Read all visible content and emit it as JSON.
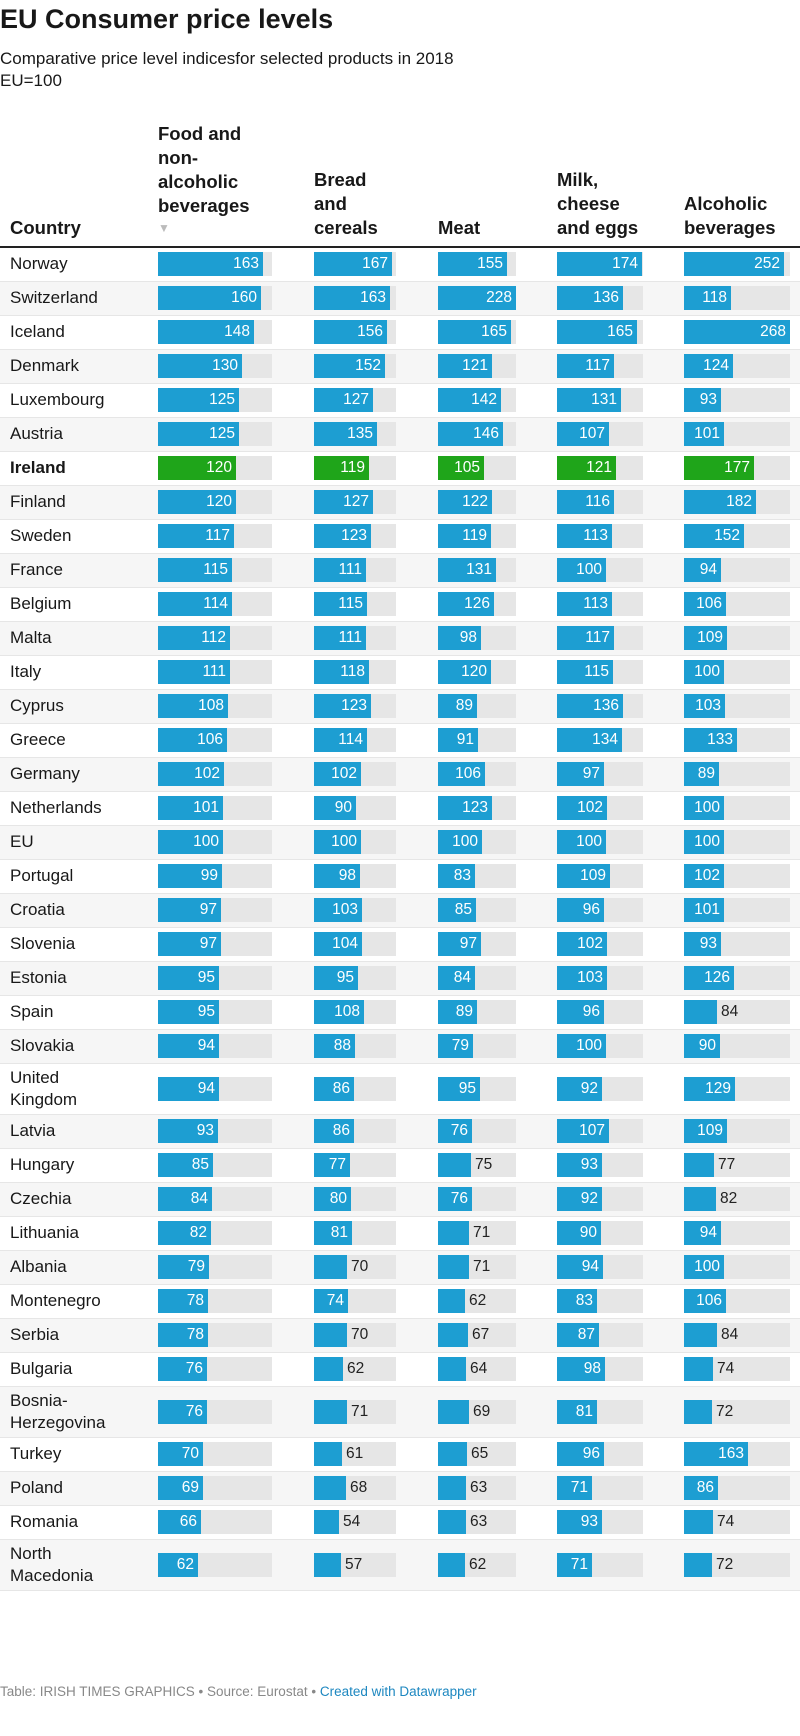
{
  "title": "EU Consumer price levels",
  "subtitle": "Comparative price level indicesfor selected products in 2018",
  "subtitle2": "EU=100",
  "colors": {
    "bar": "#1d9ed2",
    "highlight": "#1fa51a",
    "track": "#e6e6e6"
  },
  "footer": {
    "text": "Table: IRISH TIMES GRAPHICS • Source: Eurostat •",
    "link": "Created with Datawrapper"
  },
  "chart_data": {
    "type": "table",
    "title": "EU Consumer price levels",
    "subtitle": "Comparative price level indicesfor selected products in 2018",
    "scale_max": 268,
    "highlight_row": "Ireland",
    "columns": [
      {
        "key": "country",
        "label": "Country"
      },
      {
        "key": "food",
        "label": "Food and non-alcoholic beverages",
        "sorted": "descending",
        "sort_icon": "sort-down-icon"
      },
      {
        "key": "bread",
        "label": "Bread and cereals"
      },
      {
        "key": "meat",
        "label": "Meat"
      },
      {
        "key": "milk",
        "label": "Milk, cheese and eggs"
      },
      {
        "key": "alcohol",
        "label": "Alcoholic beverages"
      }
    ],
    "rows": [
      {
        "country": "Norway",
        "values": [
          163,
          167,
          155,
          174,
          252
        ]
      },
      {
        "country": "Switzerland",
        "values": [
          160,
          163,
          228,
          136,
          118
        ]
      },
      {
        "country": "Iceland",
        "values": [
          148,
          156,
          165,
          165,
          268
        ]
      },
      {
        "country": "Denmark",
        "values": [
          130,
          152,
          121,
          117,
          124
        ]
      },
      {
        "country": "Luxembourg",
        "values": [
          125,
          127,
          142,
          131,
          93
        ]
      },
      {
        "country": "Austria",
        "values": [
          125,
          135,
          146,
          107,
          101
        ]
      },
      {
        "country": "Ireland",
        "values": [
          120,
          119,
          105,
          121,
          177
        ]
      },
      {
        "country": "Finland",
        "values": [
          120,
          127,
          122,
          116,
          182
        ]
      },
      {
        "country": "Sweden",
        "values": [
          117,
          123,
          119,
          113,
          152
        ]
      },
      {
        "country": "France",
        "values": [
          115,
          111,
          131,
          100,
          94
        ]
      },
      {
        "country": "Belgium",
        "values": [
          114,
          115,
          126,
          113,
          106
        ]
      },
      {
        "country": "Malta",
        "values": [
          112,
          111,
          98,
          117,
          109
        ]
      },
      {
        "country": "Italy",
        "values": [
          111,
          118,
          120,
          115,
          100
        ]
      },
      {
        "country": "Cyprus",
        "values": [
          108,
          123,
          89,
          136,
          103
        ]
      },
      {
        "country": "Greece",
        "values": [
          106,
          114,
          91,
          134,
          133
        ]
      },
      {
        "country": "Germany",
        "values": [
          102,
          102,
          106,
          97,
          89
        ]
      },
      {
        "country": "Netherlands",
        "values": [
          101,
          90,
          123,
          102,
          100
        ]
      },
      {
        "country": "EU",
        "values": [
          100,
          100,
          100,
          100,
          100
        ]
      },
      {
        "country": "Portugal",
        "values": [
          99,
          98,
          83,
          109,
          102
        ]
      },
      {
        "country": "Croatia",
        "values": [
          97,
          103,
          85,
          96,
          101
        ]
      },
      {
        "country": "Slovenia",
        "values": [
          97,
          104,
          97,
          102,
          93
        ]
      },
      {
        "country": "Estonia",
        "values": [
          95,
          95,
          84,
          103,
          126
        ]
      },
      {
        "country": "Spain",
        "values": [
          95,
          108,
          89,
          96,
          84
        ]
      },
      {
        "country": "Slovakia",
        "values": [
          94,
          88,
          79,
          100,
          90
        ]
      },
      {
        "country": "United Kingdom",
        "values": [
          94,
          86,
          95,
          92,
          129
        ]
      },
      {
        "country": "Latvia",
        "values": [
          93,
          86,
          76,
          107,
          109
        ]
      },
      {
        "country": "Hungary",
        "values": [
          85,
          77,
          75,
          93,
          77
        ]
      },
      {
        "country": "Czechia",
        "values": [
          84,
          80,
          76,
          92,
          82
        ]
      },
      {
        "country": "Lithuania",
        "values": [
          82,
          81,
          71,
          90,
          94
        ]
      },
      {
        "country": "Albania",
        "values": [
          79,
          70,
          71,
          94,
          100
        ]
      },
      {
        "country": "Montenegro",
        "values": [
          78,
          74,
          62,
          83,
          106
        ]
      },
      {
        "country": "Serbia",
        "values": [
          78,
          70,
          67,
          87,
          84
        ]
      },
      {
        "country": "Bulgaria",
        "values": [
          76,
          62,
          64,
          98,
          74
        ]
      },
      {
        "country": "Bosnia-Herzegovina",
        "values": [
          76,
          71,
          69,
          81,
          72
        ]
      },
      {
        "country": "Turkey",
        "values": [
          70,
          61,
          65,
          96,
          163
        ]
      },
      {
        "country": "Poland",
        "values": [
          69,
          68,
          63,
          71,
          86
        ]
      },
      {
        "country": "Romania",
        "values": [
          66,
          54,
          63,
          93,
          74
        ]
      },
      {
        "country": "North Macedonia",
        "values": [
          62,
          57,
          62,
          71,
          72
        ]
      }
    ]
  }
}
